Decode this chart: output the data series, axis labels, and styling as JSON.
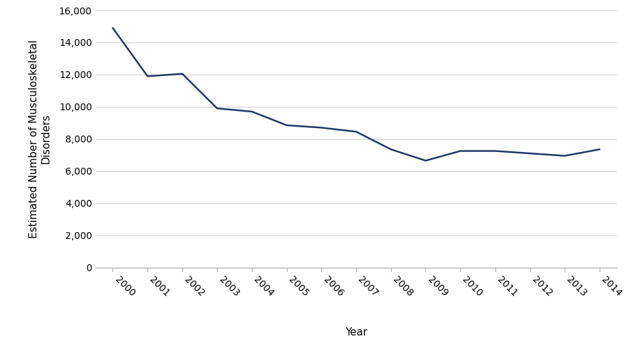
{
  "years": [
    2000,
    2001,
    2002,
    2003,
    2004,
    2005,
    2006,
    2007,
    2008,
    2009,
    2010,
    2011,
    2012,
    2013,
    2014
  ],
  "values": [
    14900,
    11900,
    12050,
    9900,
    9700,
    8850,
    8700,
    8450,
    7350,
    6650,
    7250,
    7250,
    7100,
    6950,
    7350
  ],
  "line_color": "#1f3864",
  "line_width": 1.8,
  "ylabel": "Estimated Number of Musculoskeletal\nDisorders",
  "xlabel": "Year",
  "ylim": [
    0,
    16000
  ],
  "yticks": [
    0,
    2000,
    4000,
    6000,
    8000,
    10000,
    12000,
    14000,
    16000
  ],
  "ytick_labels": [
    "0",
    "2,000",
    "4,000",
    "6,000",
    "8,000",
    "10,000",
    "12,000",
    "14,000",
    "16,000"
  ],
  "background_color": "#ffffff",
  "grid_color": "#d0d0d0",
  "tick_fontsize": 10,
  "label_fontsize": 11
}
